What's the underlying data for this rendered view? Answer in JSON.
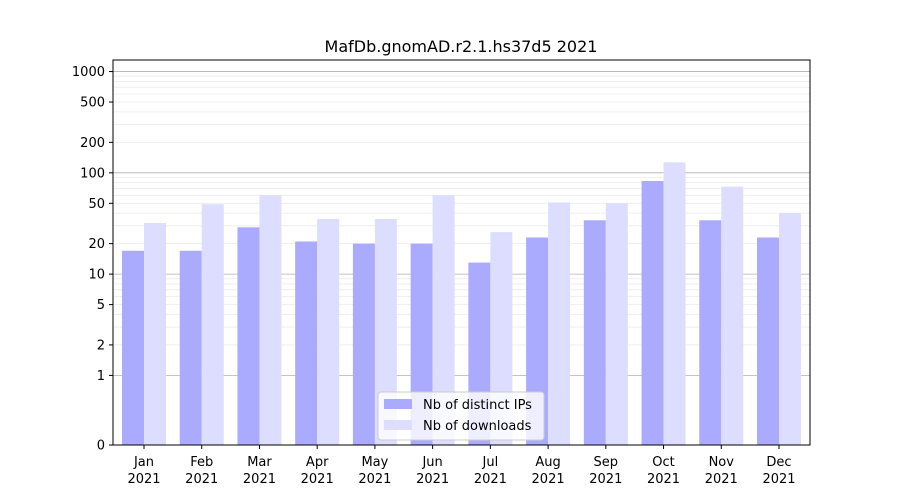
{
  "chart_data": {
    "type": "bar",
    "title": "MafDb.gnomAD.r2.1.hs37d5 2021",
    "xlabel": "",
    "ylabel": "",
    "yscale": "symlog",
    "ylim": [
      0,
      1300
    ],
    "grid": true,
    "legend_position": "bottom-center",
    "y_ticks": [
      0,
      1,
      2,
      5,
      10,
      20,
      50,
      100,
      200,
      500,
      1000
    ],
    "y_tick_labels": [
      "0",
      "1",
      "2",
      "5",
      "10",
      "20",
      "50",
      "100",
      "200",
      "500",
      "1000"
    ],
    "categories": [
      [
        "Jan",
        "2021"
      ],
      [
        "Feb",
        "2021"
      ],
      [
        "Mar",
        "2021"
      ],
      [
        "Apr",
        "2021"
      ],
      [
        "May",
        "2021"
      ],
      [
        "Jun",
        "2021"
      ],
      [
        "Jul",
        "2021"
      ],
      [
        "Aug",
        "2021"
      ],
      [
        "Sep",
        "2021"
      ],
      [
        "Oct",
        "2021"
      ],
      [
        "Nov",
        "2021"
      ],
      [
        "Dec",
        "2021"
      ]
    ],
    "series": [
      {
        "name": "Nb of distinct IPs",
        "color": "#aaaaff",
        "values": [
          17,
          17,
          29,
          21,
          20,
          20,
          13,
          23,
          34,
          83,
          34,
          23
        ]
      },
      {
        "name": "Nb of downloads",
        "color": "#ddddff",
        "values": [
          32,
          49,
          60,
          35,
          35,
          60,
          26,
          51,
          50,
          127,
          73,
          40
        ]
      }
    ]
  }
}
